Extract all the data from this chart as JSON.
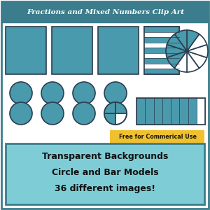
{
  "bg_color": "#ffffff",
  "header_color": "#3b7d8c",
  "header_text": "Fractions and Mixed Numbers Clip Art",
  "header_text_color": "#ffffff",
  "teal": "#4a9aad",
  "teal_dark": "#3b7d8c",
  "outline_color": "#2c3e50",
  "yellow_bg": "#f0c030",
  "free_text": "Free for Commerical Use",
  "main_text_lines": [
    "Transparent Backgrounds",
    "Circle and Bar Models",
    "36 different images!"
  ],
  "bottom_text_bg": "#7ecdd6",
  "border_color": "#3b7d8c"
}
